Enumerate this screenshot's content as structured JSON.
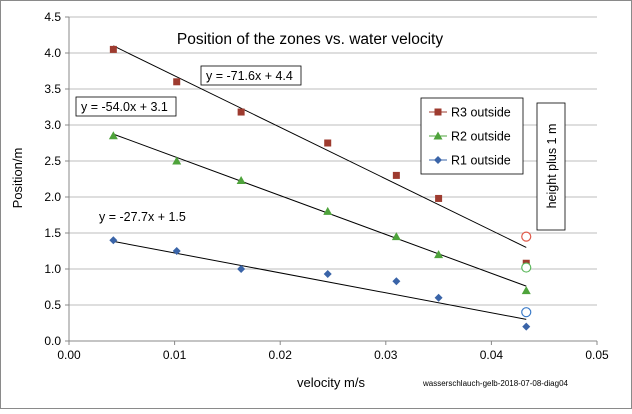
{
  "chart_data": {
    "type": "scatter",
    "title": "Position of the zones vs. water velocity",
    "xlabel": "velocity m/s",
    "ylabel": "Position/m",
    "xlim": [
      0,
      0.05
    ],
    "ylim": [
      0,
      4.5
    ],
    "x_ticks": [
      "0.00",
      "0.01",
      "0.02",
      "0.03",
      "0.04",
      "0.05"
    ],
    "y_ticks": [
      "0.0",
      "0.5",
      "1.0",
      "1.5",
      "2.0",
      "2.5",
      "3.0",
      "3.5",
      "4.0",
      "4.5"
    ],
    "grid": "horizontal",
    "legend_position": "right",
    "series": [
      {
        "name": "R3 outside",
        "marker": "square",
        "color": "#9E3B2F",
        "x": [
          0.0042,
          0.0102,
          0.0163,
          0.0245,
          0.031,
          0.035,
          0.0433
        ],
        "y": [
          4.05,
          3.6,
          3.18,
          2.75,
          2.3,
          1.98,
          1.08
        ],
        "trendline": {
          "label": "y = -71.6x + 4.4",
          "slope": -71.6,
          "intercept": 4.4,
          "x_range": [
            0.0042,
            0.0433
          ]
        }
      },
      {
        "name": "R2 outside",
        "marker": "triangle",
        "color": "#4EA33B",
        "x": [
          0.0042,
          0.0102,
          0.0163,
          0.0245,
          0.031,
          0.035,
          0.0433
        ],
        "y": [
          2.85,
          2.5,
          2.23,
          1.8,
          1.45,
          1.2,
          0.7
        ],
        "trendline": {
          "label": "y = -54.0x + 3.1",
          "slope": -54.0,
          "intercept": 3.1,
          "x_range": [
            0.0042,
            0.0433
          ]
        }
      },
      {
        "name": "R1 outside",
        "marker": "diamond",
        "color": "#3A64A8",
        "x": [
          0.0042,
          0.0102,
          0.0163,
          0.0245,
          0.031,
          0.035,
          0.0433
        ],
        "y": [
          1.4,
          1.25,
          1.0,
          0.93,
          0.83,
          0.6,
          0.2
        ],
        "trendline": {
          "label": "y = -27.7x + 1.5",
          "slope": -27.7,
          "intercept": 1.5,
          "x_range": [
            0.0042,
            0.0433
          ]
        }
      }
    ],
    "extra_points": [
      {
        "x": 0.0433,
        "y": 1.45,
        "color": "#E05A4A"
      },
      {
        "x": 0.0433,
        "y": 1.02,
        "color": "#5CB85C"
      },
      {
        "x": 0.0433,
        "y": 0.4,
        "color": "#3B7BC8"
      }
    ],
    "annotation": "height plus 1 m",
    "footer": "wasserschlauch-gelb-2018-07-08-diag04"
  }
}
